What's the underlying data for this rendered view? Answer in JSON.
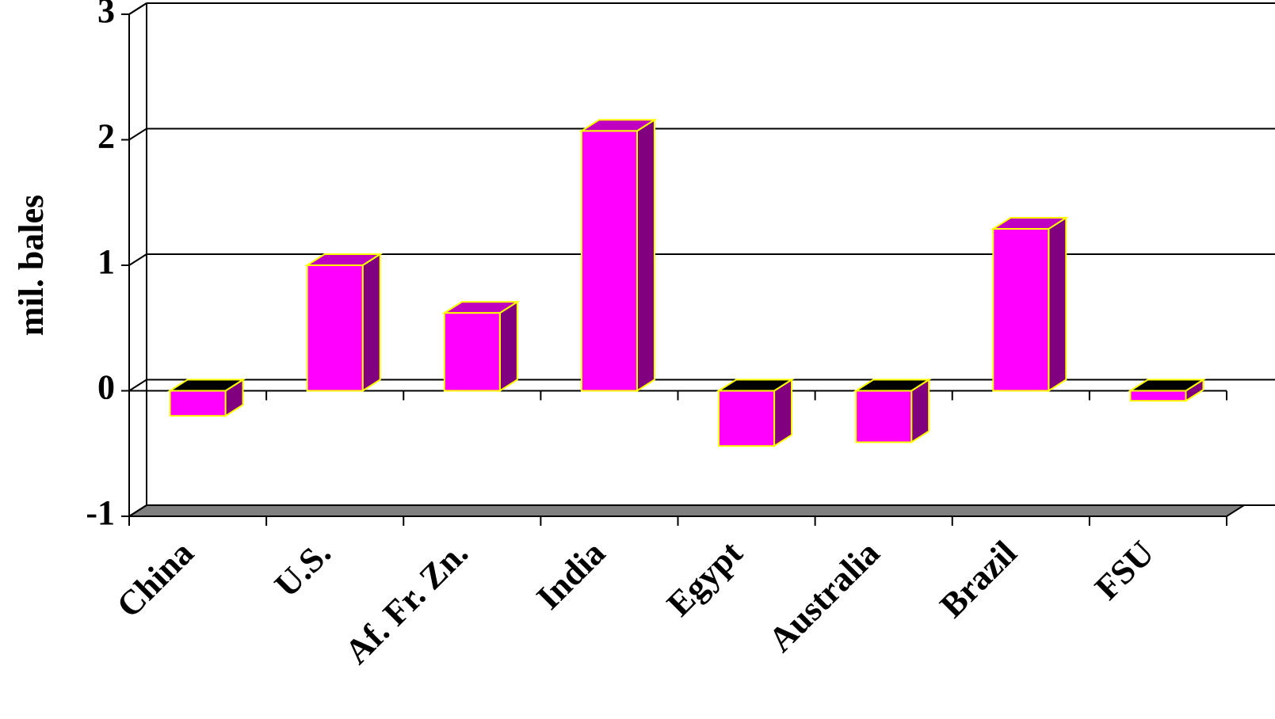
{
  "chart_data": {
    "type": "bar3d",
    "y_label": "mil. bales",
    "categories": [
      "China",
      "U.S.",
      "Af. Fr. Zn.",
      "India",
      "Egypt",
      "Australia",
      "Brazil",
      "FSU"
    ],
    "values": [
      -0.2,
      1.0,
      0.62,
      2.07,
      -0.44,
      -0.41,
      1.29,
      -0.08
    ],
    "color": "#ff00ff",
    "ylim": [
      -1,
      3
    ],
    "yticks": [
      -1,
      0,
      1,
      2,
      3
    ],
    "grid": true
  }
}
